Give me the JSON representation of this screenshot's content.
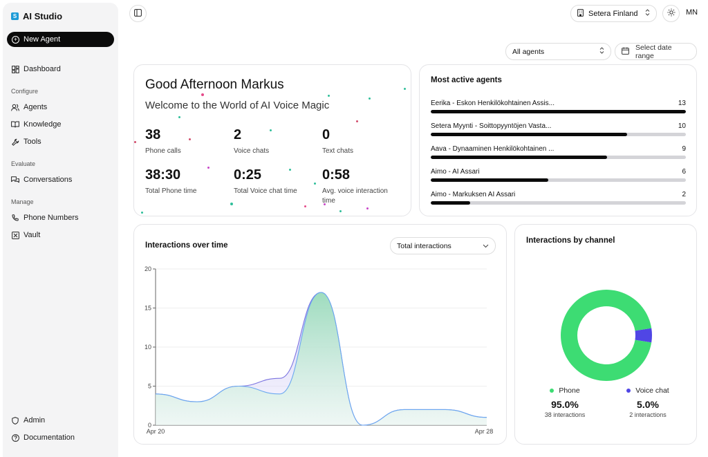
{
  "brand": {
    "name": "AI Studio",
    "logo_letter": "S"
  },
  "sidebar": {
    "new_agent_label": "New Agent",
    "dashboard_label": "Dashboard",
    "sections": {
      "configure": "Configure",
      "evaluate": "Evaluate",
      "manage": "Manage"
    },
    "items": {
      "agents": "Agents",
      "knowledge": "Knowledge",
      "tools": "Tools",
      "conversations": "Conversations",
      "phone_numbers": "Phone Numbers",
      "vault": "Vault",
      "admin": "Admin",
      "documentation": "Documentation"
    }
  },
  "header": {
    "organization": "Setera Finland",
    "user_initials": "MN"
  },
  "filters": {
    "agent": "All agents",
    "date_placeholder": "Select date range"
  },
  "greeting": {
    "title": "Good Afternoon Markus",
    "subtitle": "Welcome to the World of AI Voice Magic",
    "stats": [
      {
        "value": "38",
        "label": "Phone calls"
      },
      {
        "value": "2",
        "label": "Voice chats"
      },
      {
        "value": "0",
        "label": "Text chats"
      },
      {
        "value": "38:30",
        "label": "Total Phone time"
      },
      {
        "value": "0:25",
        "label": "Total Voice chat time"
      },
      {
        "value": "0:58",
        "label": "Avg. voice interaction time"
      }
    ]
  },
  "most_active": {
    "title": "Most active agents",
    "max": 13,
    "agents": [
      {
        "name": "Eerika - Eskon Henkilökohtainen Assis...",
        "count": 13
      },
      {
        "name": "Setera Myynti - Soittopyyntöjen Vasta...",
        "count": 10
      },
      {
        "name": "Aava - Dynaaminen Henkilökohtainen ...",
        "count": 9
      },
      {
        "name": "Aimo - AI Assari",
        "count": 6
      },
      {
        "name": "Aimo - Markuksen AI Assari",
        "count": 2
      }
    ]
  },
  "interactions_chart": {
    "title": "Interactions over time",
    "selector": "Total interactions"
  },
  "chart_data": {
    "type": "area",
    "title": "Interactions over time",
    "x_tick_labels": [
      "Apr 20",
      "Apr 28"
    ],
    "ylim": [
      0,
      20
    ],
    "y_ticks": [
      "0",
      "5",
      "10",
      "15",
      "20"
    ],
    "x": [
      0,
      1,
      2,
      3,
      4,
      5,
      6,
      7,
      8
    ],
    "series": [
      {
        "name": "Total interactions",
        "values": [
          4,
          3,
          5,
          6,
          17,
          0,
          2,
          2,
          1
        ]
      },
      {
        "name": "Phone",
        "values": [
          4,
          3,
          5,
          4,
          17,
          0,
          2,
          2,
          1
        ]
      }
    ]
  },
  "channel": {
    "title": "Interactions by channel",
    "phone": {
      "label": "Phone",
      "percent": "95.0%",
      "sub": "38 interactions",
      "value": 38,
      "color": "#3ddc73"
    },
    "voice": {
      "label": "Voice chat",
      "percent": "5.0%",
      "sub": "2 interactions",
      "value": 2,
      "color": "#5046e5"
    }
  }
}
